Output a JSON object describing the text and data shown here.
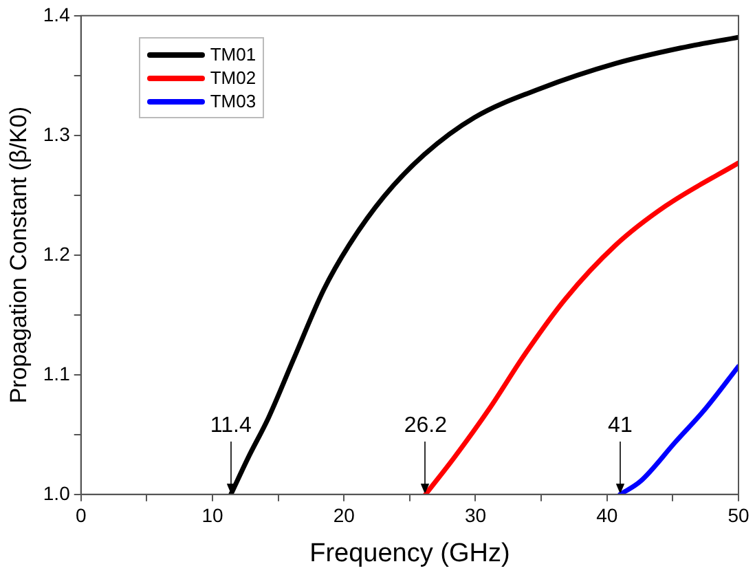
{
  "chart_data": {
    "type": "line",
    "xlabel": "Frequency (GHz)",
    "ylabel": "Propagation Constant (β/K0)",
    "xlim": [
      0,
      50
    ],
    "xticks": [
      0,
      {
        "value": 5,
        "label": null
      },
      10,
      {
        "value": 15,
        "label": null
      },
      20,
      {
        "value": 25,
        "label": null
      },
      30,
      {
        "value": 35,
        "label": null
      },
      40,
      {
        "value": 45,
        "label": null
      },
      50
    ],
    "ylim": [
      1.0,
      1.4
    ],
    "yticks": [
      {
        "value": 1.0,
        "label": "1.0"
      },
      {
        "value": 1.05,
        "label": null
      },
      1.1,
      {
        "value": 1.15,
        "label": null
      },
      1.2,
      {
        "value": 1.25,
        "label": null
      },
      1.3,
      {
        "value": 1.35,
        "label": null
      },
      1.4
    ],
    "grid": false,
    "legend": "top left",
    "marker": "none",
    "line_style": "solid",
    "series": [
      {
        "name": "TM01",
        "color": "#000000",
        "x": [
          11.4,
          12.73,
          14.26,
          16.17,
          18.46,
          20.37,
          23.05,
          26.11,
          29.93,
          34.9,
          40.63,
          45.6,
          50
        ],
        "values": [
          1.0,
          1.031,
          1.064,
          1.113,
          1.171,
          1.208,
          1.249,
          1.284,
          1.315,
          1.339,
          1.36,
          1.373,
          1.382
        ]
      },
      {
        "name": "TM02",
        "color": "#ff0000",
        "x": [
          26.2,
          28.4,
          31.08,
          33.75,
          36.81,
          40.63,
          44.46,
          50
        ],
        "values": [
          1.0,
          1.031,
          1.072,
          1.117,
          1.163,
          1.208,
          1.241,
          1.277
        ]
      },
      {
        "name": "TM03",
        "color": "#0000ff",
        "x": [
          41,
          42.55,
          45.22,
          47.52,
          50
        ],
        "values": [
          1.0,
          1.011,
          1.044,
          1.072,
          1.107
        ]
      }
    ],
    "annotations": [
      {
        "text": "11.4",
        "x": 11.4,
        "y": 1.0
      },
      {
        "text": "26.2",
        "x": 26.2,
        "y": 1.0
      },
      {
        "text": "41",
        "x": 41,
        "y": 1.0
      }
    ]
  }
}
